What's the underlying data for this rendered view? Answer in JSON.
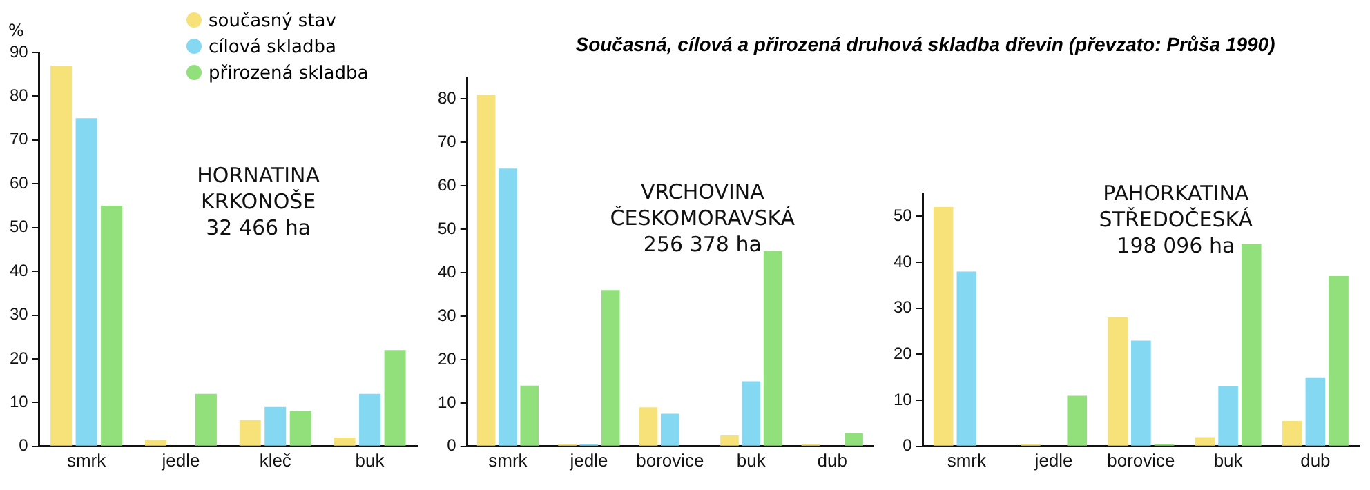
{
  "chart_data": [
    {
      "type": "bar",
      "ylabel": "%",
      "annotations": [
        "HORNATINA",
        "KRKONOŠE",
        "32 466 ha"
      ],
      "categories": [
        "smrk",
        "jedle",
        "kleč",
        "buk"
      ],
      "series": [
        {
          "name": "současný stav",
          "color": "#f7e27a",
          "values": [
            87,
            1.5,
            6,
            2
          ]
        },
        {
          "name": "cílová skladba",
          "color": "#84d8f2",
          "values": [
            75,
            0,
            9,
            12
          ]
        },
        {
          "name": "přirozená skladba",
          "color": "#92e07c",
          "values": [
            55,
            12,
            8,
            22
          ]
        }
      ],
      "ylim": [
        0,
        90
      ],
      "yticks": [
        0,
        10,
        20,
        30,
        40,
        50,
        60,
        70,
        80,
        90
      ],
      "grid": false,
      "legend": "top right"
    },
    {
      "type": "bar",
      "title": "Současná, cílová a přirozená druhová skladba dřevin  (převzato: Průša 1990)",
      "annotations": [
        "VRCHOVINA",
        "ČESKOMORAVSKÁ",
        "256 378 ha"
      ],
      "categories": [
        "smrk",
        "jedle",
        "borovice",
        "buk",
        "dub"
      ],
      "series": [
        {
          "color": "#f7e27a",
          "values": [
            81,
            0.5,
            9,
            2.5,
            0.5
          ]
        },
        {
          "color": "#84d8f2",
          "values": [
            64,
            0.5,
            7.5,
            15,
            0
          ]
        },
        {
          "color": "#92e07c",
          "values": [
            14,
            36,
            0,
            45,
            3
          ]
        }
      ],
      "ylim": [
        0,
        85
      ],
      "yticks": [
        0,
        10,
        20,
        30,
        40,
        50,
        60,
        70,
        80
      ],
      "grid": false,
      "legend": false
    },
    {
      "type": "bar",
      "annotations": [
        "PAHORKATINA",
        "STŘEDOČESKÁ",
        "198 096 ha"
      ],
      "categories": [
        "smrk",
        "jedle",
        "borovice",
        "buk",
        "dub"
      ],
      "series": [
        {
          "color": "#f7e27a",
          "values": [
            52,
            0.5,
            28,
            2,
            5.5
          ]
        },
        {
          "color": "#84d8f2",
          "values": [
            38,
            0,
            23,
            13,
            15
          ]
        },
        {
          "color": "#92e07c",
          "values": [
            0,
            11,
            0.5,
            44,
            37
          ]
        }
      ],
      "ylim": [
        0,
        55
      ],
      "yticks": [
        0,
        10,
        20,
        30,
        40,
        50
      ],
      "grid": false,
      "legend": false
    }
  ]
}
